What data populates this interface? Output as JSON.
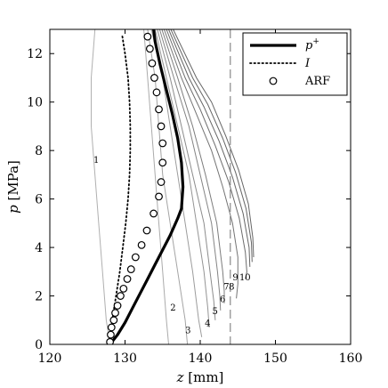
{
  "chart_data": {
    "type": "line",
    "xlabel_var": "z",
    "xlabel_unit": "[mm]",
    "ylabel_var": "p",
    "ylabel_unit": "[MPa]",
    "xlim": [
      120,
      160
    ],
    "ylim": [
      0,
      13
    ],
    "x_ticks": [
      120,
      130,
      140,
      150,
      160
    ],
    "y_ticks": [
      0,
      2,
      4,
      6,
      8,
      10,
      12
    ],
    "grid": false,
    "legend_position": "top-right",
    "legend": [
      {
        "key": "p_plus",
        "text": "p",
        "sup": "+",
        "style": "solid-thick"
      },
      {
        "key": "I",
        "text": "I",
        "style": "dotted"
      },
      {
        "key": "ARF",
        "text": "ARF",
        "style": "circle-marker"
      }
    ],
    "vertical_reference": {
      "x": 144,
      "style": "dashed"
    },
    "p_plus": [
      [
        128,
        0
      ],
      [
        129,
        0.4
      ],
      [
        130,
        0.9
      ],
      [
        131,
        1.5
      ],
      [
        132,
        2.1
      ],
      [
        133,
        2.7
      ],
      [
        134,
        3.3
      ],
      [
        135,
        3.9
      ],
      [
        136,
        4.5
      ],
      [
        137,
        5.2
      ],
      [
        137.5,
        5.6
      ],
      [
        137.7,
        6.5
      ],
      [
        137.5,
        7.5
      ],
      [
        137,
        8.5
      ],
      [
        136.3,
        9.5
      ],
      [
        135.5,
        10.5
      ],
      [
        134.7,
        11.5
      ],
      [
        134,
        12.5
      ],
      [
        133.8,
        13
      ]
    ],
    "I": [
      [
        128,
        0
      ],
      [
        128.3,
        1.0
      ],
      [
        128.8,
        2.0
      ],
      [
        129.3,
        3.0
      ],
      [
        129.7,
        4.0
      ],
      [
        130.1,
        5.0
      ],
      [
        130.4,
        6.0
      ],
      [
        130.6,
        7.0
      ],
      [
        130.7,
        8.0
      ],
      [
        130.7,
        9.0
      ],
      [
        130.6,
        10.0
      ],
      [
        130.4,
        11.0
      ],
      [
        130.0,
        12.0
      ],
      [
        129.6,
        12.8
      ]
    ],
    "ARF": [
      [
        128,
        0.1
      ],
      [
        128.1,
        0.4
      ],
      [
        128.2,
        0.7
      ],
      [
        128.5,
        1.0
      ],
      [
        128.7,
        1.3
      ],
      [
        129.0,
        1.6
      ],
      [
        129.4,
        2.0
      ],
      [
        129.8,
        2.3
      ],
      [
        130.3,
        2.7
      ],
      [
        130.8,
        3.1
      ],
      [
        131.4,
        3.6
      ],
      [
        132.2,
        4.1
      ],
      [
        132.9,
        4.7
      ],
      [
        133.8,
        5.4
      ],
      [
        134.5,
        6.1
      ],
      [
        134.8,
        6.7
      ],
      [
        135.0,
        7.5
      ],
      [
        135.0,
        8.3
      ],
      [
        134.8,
        9.0
      ],
      [
        134.5,
        9.7
      ],
      [
        134.2,
        10.4
      ],
      [
        133.9,
        11.0
      ],
      [
        133.6,
        11.6
      ],
      [
        133.3,
        12.2
      ],
      [
        133.0,
        12.7
      ]
    ],
    "families": [
      {
        "label": "1",
        "points": [
          [
            126,
            13
          ],
          [
            125.5,
            11
          ],
          [
            125.5,
            9
          ],
          [
            126,
            7
          ],
          [
            126.5,
            5
          ],
          [
            127,
            3
          ],
          [
            127.5,
            1
          ],
          [
            128,
            0
          ]
        ]
      },
      {
        "label": "2",
        "points": [
          [
            132.5,
            13
          ],
          [
            133,
            11
          ],
          [
            133.5,
            9
          ],
          [
            134,
            7
          ],
          [
            134.5,
            5
          ],
          [
            135,
            3
          ],
          [
            135.5,
            1
          ],
          [
            135.8,
            0
          ]
        ]
      },
      {
        "label": "3",
        "points": [
          [
            133,
            13
          ],
          [
            134,
            11
          ],
          [
            134.5,
            9
          ],
          [
            135,
            7
          ],
          [
            136,
            5
          ],
          [
            137,
            3
          ],
          [
            138,
            1
          ],
          [
            138.3,
            0
          ]
        ]
      },
      {
        "label": "4",
        "points": [
          [
            133.5,
            13
          ],
          [
            135,
            11
          ],
          [
            136,
            9
          ],
          [
            137,
            7
          ],
          [
            138,
            5
          ],
          [
            139,
            3
          ],
          [
            139.8,
            1
          ],
          [
            140.2,
            0.3
          ]
        ]
      },
      {
        "label": "5",
        "points": [
          [
            134,
            13
          ],
          [
            135.5,
            11
          ],
          [
            137,
            9
          ],
          [
            138.5,
            7
          ],
          [
            139.5,
            5
          ],
          [
            140.5,
            3
          ],
          [
            141,
            1.5
          ],
          [
            141.2,
            0.7
          ]
        ]
      },
      {
        "label": "6",
        "points": [
          [
            134.3,
            13
          ],
          [
            136,
            11
          ],
          [
            137.5,
            9
          ],
          [
            139,
            7
          ],
          [
            140.5,
            5
          ],
          [
            141.3,
            3
          ],
          [
            141.8,
            1.8
          ],
          [
            142,
            1.0
          ]
        ]
      },
      {
        "label": "7",
        "points": [
          [
            134.6,
            13
          ],
          [
            136.5,
            11
          ],
          [
            138.5,
            9
          ],
          [
            140,
            7
          ],
          [
            141.5,
            5
          ],
          [
            142.3,
            3
          ],
          [
            142.6,
            2.0
          ],
          [
            142.7,
            1.4
          ]
        ]
      },
      {
        "label": "8",
        "points": [
          [
            134.9,
            13
          ],
          [
            137,
            11
          ],
          [
            139,
            9
          ],
          [
            140.7,
            7
          ],
          [
            142.2,
            5
          ],
          [
            143,
            3
          ],
          [
            143.2,
            2.2
          ],
          [
            143.2,
            1.7
          ]
        ]
      },
      {
        "label": "9",
        "points": [
          [
            135.2,
            13
          ],
          [
            137.5,
            11
          ],
          [
            139.5,
            9.5
          ],
          [
            141.5,
            8
          ],
          [
            143,
            6.5
          ],
          [
            144.3,
            5
          ],
          [
            145,
            3.6
          ],
          [
            145,
            2.5
          ],
          [
            144.8,
            1.9
          ]
        ]
      },
      {
        "label": "10",
        "points": [
          [
            135.5,
            13
          ],
          [
            138,
            11
          ],
          [
            140,
            9.7
          ],
          [
            142,
            8.2
          ],
          [
            143.8,
            6.7
          ],
          [
            145.2,
            5.2
          ],
          [
            146,
            3.8
          ],
          [
            146.2,
            3.0
          ],
          [
            146,
            2.7
          ]
        ]
      }
    ],
    "extra_curves": [
      [
        [
          135.8,
          13
        ],
        [
          138.5,
          11
        ],
        [
          140.5,
          9.8
        ],
        [
          142.5,
          8.4
        ],
        [
          144.3,
          6.9
        ],
        [
          145.7,
          5.4
        ],
        [
          146.5,
          4
        ],
        [
          146.6,
          3.2
        ]
      ],
      [
        [
          136.1,
          13
        ],
        [
          139,
          11
        ],
        [
          141,
          9.9
        ],
        [
          143,
          8.5
        ],
        [
          144.7,
          7.1
        ],
        [
          146.1,
          5.6
        ],
        [
          146.8,
          4.2
        ],
        [
          146.9,
          3.4
        ]
      ],
      [
        [
          136.4,
          13
        ],
        [
          139.5,
          11
        ],
        [
          141.5,
          10
        ],
        [
          143.4,
          8.6
        ],
        [
          145.1,
          7.2
        ],
        [
          146.4,
          5.8
        ],
        [
          147,
          4.4
        ],
        [
          147.1,
          3.6
        ]
      ]
    ]
  }
}
